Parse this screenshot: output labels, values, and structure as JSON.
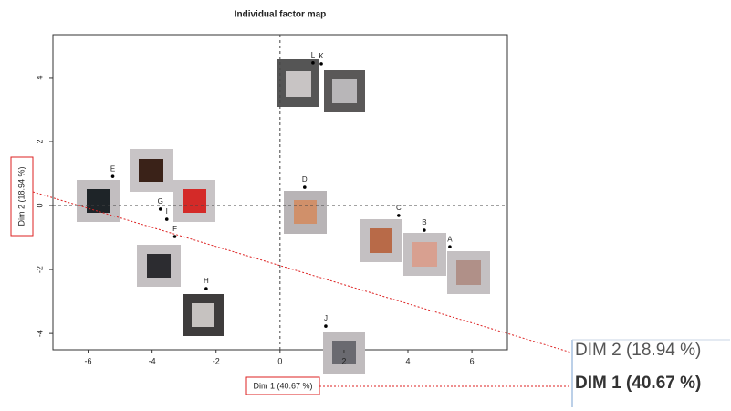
{
  "chart_data": {
    "type": "scatter",
    "title": "Individual factor map",
    "x_label": "Dim 1 (40.67 %)",
    "y_label": "Dim 2 (18.94 %)",
    "labels": [
      "L",
      "K",
      "E",
      "D",
      "G",
      "I",
      "F",
      "C",
      "B",
      "A",
      "H",
      "J"
    ],
    "x": [
      1.03,
      1.29,
      -5.23,
      0.77,
      -3.74,
      -3.54,
      -3.29,
      3.71,
      4.51,
      5.31,
      -2.31,
      1.43
    ],
    "y": [
      4.46,
      4.43,
      0.91,
      0.57,
      -0.11,
      -0.43,
      -0.97,
      -0.31,
      -0.77,
      -1.29,
      -2.6,
      -3.77
    ],
    "color": "#000000",
    "xlim": [
      -7.1,
      7.11
    ],
    "ylim": [
      -4.51,
      5.34
    ],
    "xticks": [
      -6,
      -4,
      -2,
      0,
      2,
      4,
      6
    ],
    "yticks": [
      -4,
      -2,
      0,
      2,
      4
    ],
    "annotations": [
      "DIM 2 (18.94 %)",
      "DIM 1 (40.67 %)"
    ]
  }
}
